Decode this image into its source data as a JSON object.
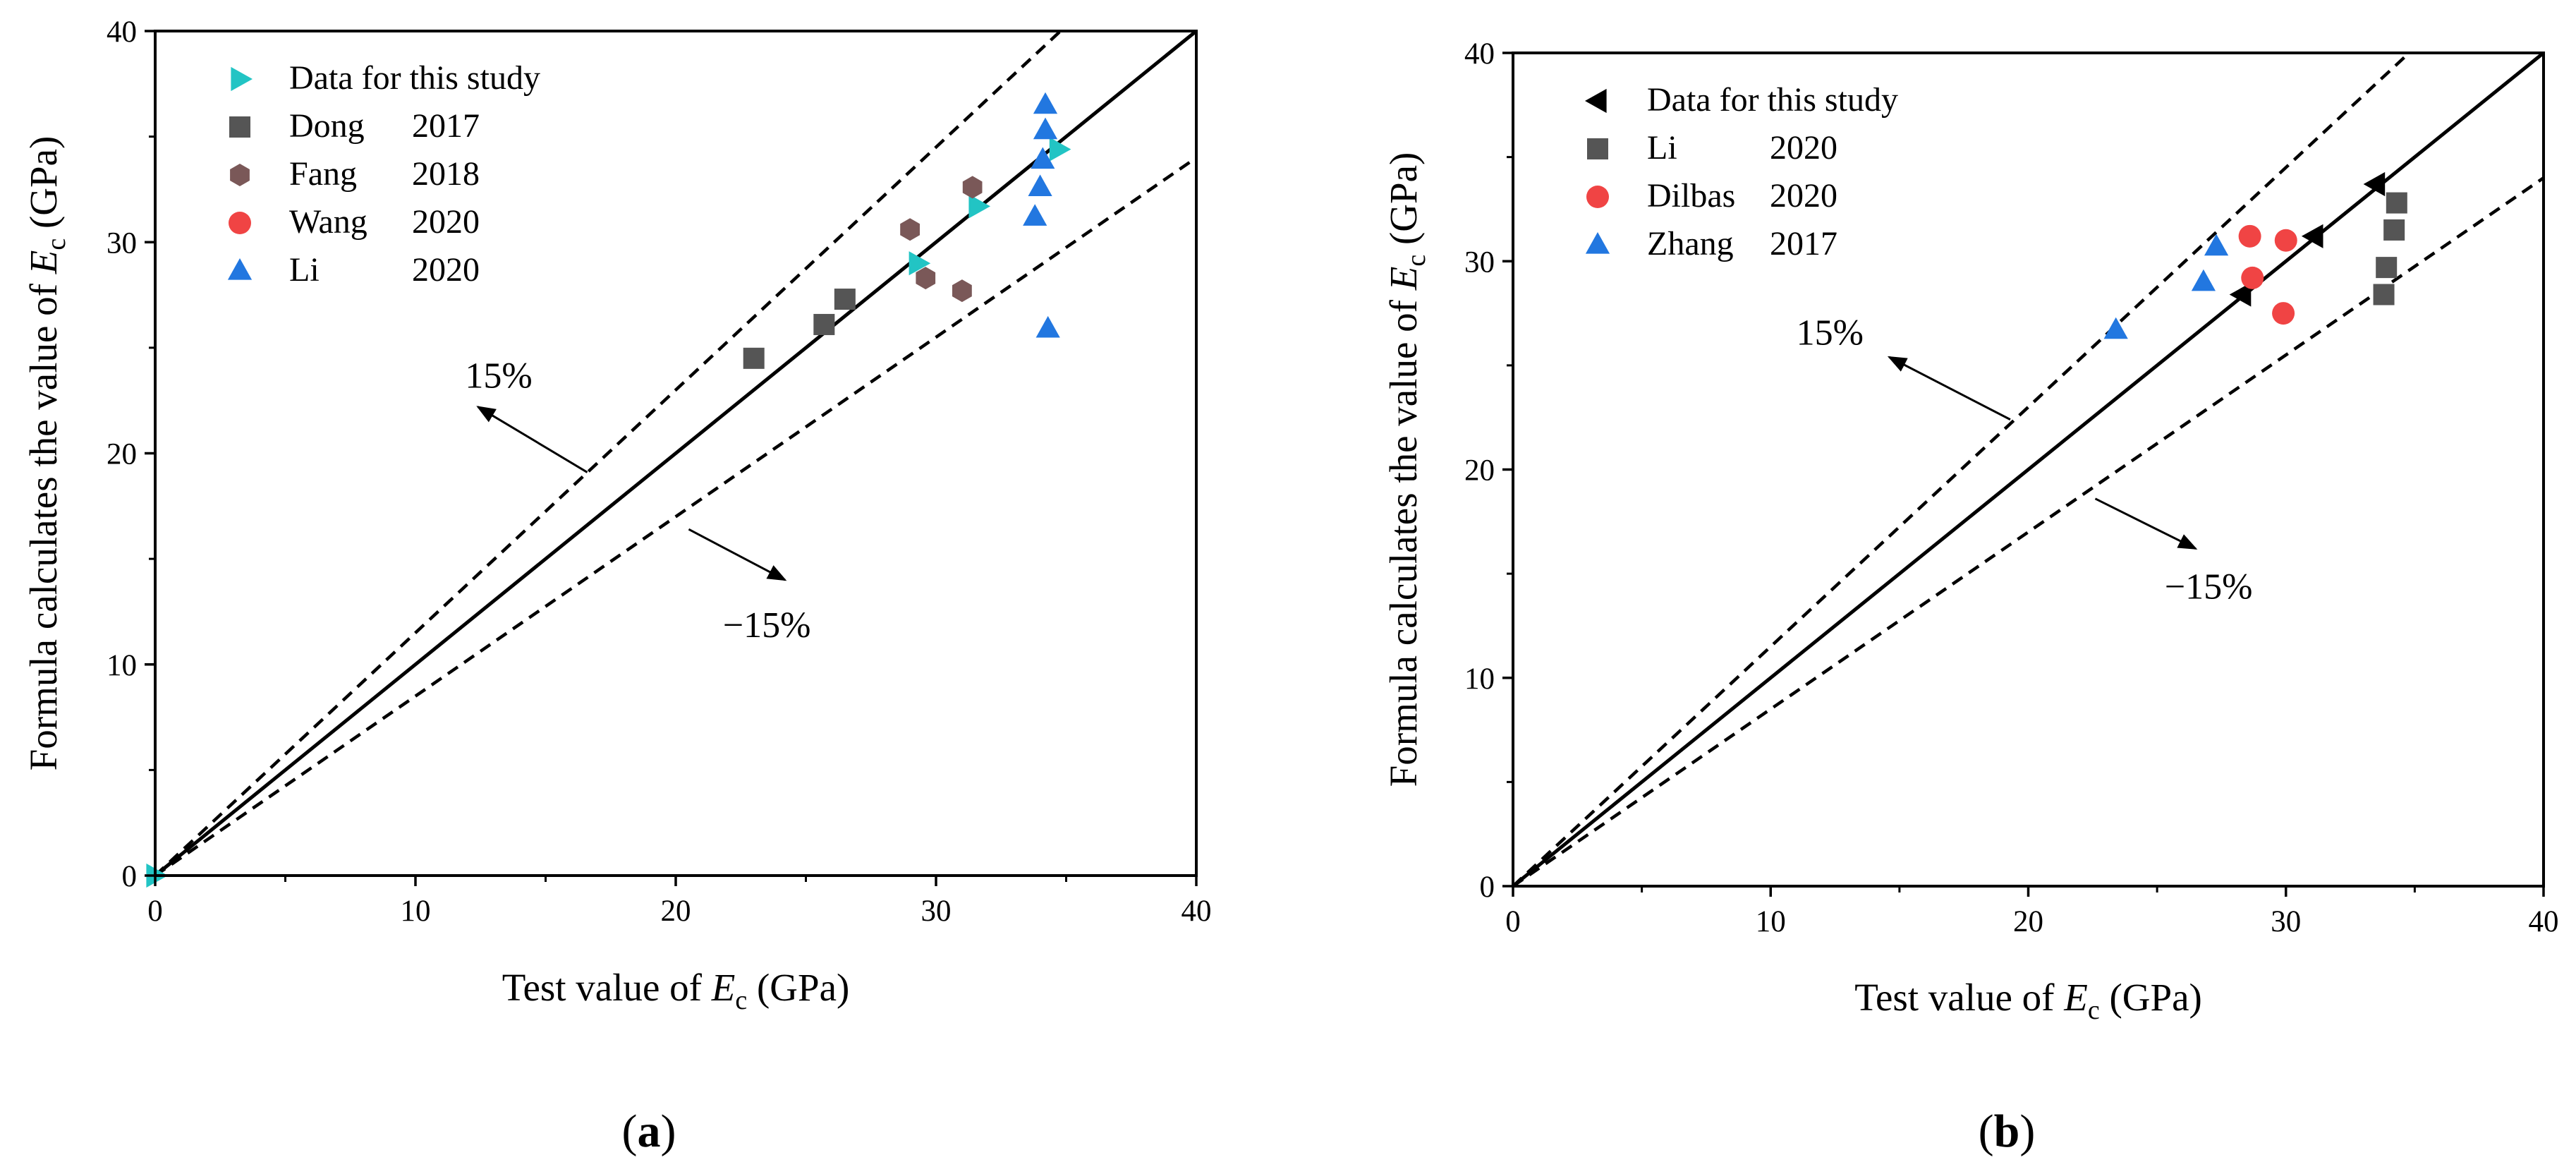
{
  "chart_data": [
    {
      "type": "scatter",
      "panel": "a",
      "caption_open": "(",
      "caption_letter": "a",
      "caption_close": ")",
      "xlabel_pre": "Test value of ",
      "xlabel_var": "E",
      "xlabel_sub": "c",
      "xlabel_post": " (GPa)",
      "ylabel_pre": "Formula calculates the value of ",
      "ylabel_var": "E",
      "ylabel_sub": "c",
      "ylabel_post": " (GPa)",
      "xlim": [
        0,
        40
      ],
      "ylim": [
        0,
        40
      ],
      "xticks": [
        0,
        10,
        20,
        30,
        40
      ],
      "yticks": [
        0,
        10,
        20,
        30,
        40
      ],
      "xtick_labels": [
        "0",
        "10",
        "20",
        "30",
        "40"
      ],
      "ytick_labels": [
        "0",
        "10",
        "20",
        "30",
        "40"
      ],
      "legend_position": "top-left",
      "reference_lines": [
        {
          "name": "y = x",
          "slope": 1.0,
          "style": "solid"
        },
        {
          "name": "+15%",
          "slope": 1.15,
          "style": "dashed"
        },
        {
          "name": "-15%",
          "slope": 0.85,
          "style": "dashed"
        }
      ],
      "annotations": [
        {
          "text": "15%",
          "at": [
            13.2,
            23.1
          ],
          "arrow_from": [
            16.6,
            19.1
          ],
          "arrow_to": [
            12.4,
            22.2
          ]
        },
        {
          "text": "−15%",
          "at": [
            23.5,
            11.3
          ],
          "arrow_from": [
            20.5,
            16.4
          ],
          "arrow_to": [
            24.2,
            14.0
          ]
        }
      ],
      "series": [
        {
          "name": "Data for this study",
          "year": "",
          "marker": "triangle-right",
          "color": "#22c4c4",
          "points": [
            [
              0,
              0
            ],
            [
              29.3,
              29.0
            ],
            [
              31.6,
              31.7
            ],
            [
              34.7,
              34.4
            ]
          ]
        },
        {
          "name": "Dong",
          "year": "2017",
          "marker": "square",
          "color": "#555555",
          "points": [
            [
              23.0,
              24.5
            ],
            [
              25.7,
              26.1
            ],
            [
              26.5,
              27.3
            ]
          ]
        },
        {
          "name": "Fang",
          "year": "2018",
          "marker": "hexagon",
          "color": "#7a5858",
          "points": [
            [
              29.0,
              30.6
            ],
            [
              31.4,
              32.6
            ],
            [
              29.6,
              28.3
            ],
            [
              31.0,
              27.7
            ]
          ]
        },
        {
          "name": "Wang",
          "year": "2020",
          "marker": "circle",
          "color": "#f04444",
          "points": []
        },
        {
          "name": "Li",
          "year": "2020",
          "marker": "triangle-up",
          "color": "#2277e0",
          "points": [
            [
              34.2,
              36.5
            ],
            [
              34.2,
              35.3
            ],
            [
              34.1,
              33.9
            ],
            [
              34.0,
              32.6
            ],
            [
              33.8,
              31.2
            ],
            [
              34.3,
              25.9
            ]
          ]
        }
      ]
    },
    {
      "type": "scatter",
      "panel": "b",
      "caption_open": "(",
      "caption_letter": "b",
      "caption_close": ")",
      "xlabel_pre": "Test value of ",
      "xlabel_var": "E",
      "xlabel_sub": "c",
      "xlabel_post": " (GPa)",
      "ylabel_pre": "Formula calculates the value of ",
      "ylabel_var": "E",
      "ylabel_sub": "c",
      "ylabel_post": " (GPa)",
      "xlim": [
        0,
        40
      ],
      "ylim": [
        0,
        40
      ],
      "xticks": [
        0,
        10,
        20,
        30,
        40
      ],
      "yticks": [
        0,
        10,
        20,
        30,
        40
      ],
      "xtick_labels": [
        "0",
        "10",
        "20",
        "30",
        "40"
      ],
      "ytick_labels": [
        "0",
        "10",
        "20",
        "30",
        "40"
      ],
      "legend_position": "top-left",
      "reference_lines": [
        {
          "name": "y = x",
          "slope": 1.0,
          "style": "solid"
        },
        {
          "name": "+15%",
          "slope": 1.15,
          "style": "dashed"
        },
        {
          "name": "-15%",
          "slope": 0.85,
          "style": "dashed"
        }
      ],
      "annotations": [
        {
          "text": "15%",
          "at": [
            12.3,
            26.0
          ],
          "arrow_from": [
            19.3,
            22.4
          ],
          "arrow_to": [
            14.6,
            25.4
          ]
        },
        {
          "text": "−15%",
          "at": [
            27.0,
            13.8
          ],
          "arrow_from": [
            22.6,
            18.6
          ],
          "arrow_to": [
            26.5,
            16.2
          ]
        }
      ],
      "series": [
        {
          "name": "Data for this study",
          "year": "",
          "marker": "triangle-left",
          "color": "#000000",
          "points": [
            [
              28.3,
              28.4
            ],
            [
              31.1,
              31.2
            ],
            [
              33.5,
              33.7
            ]
          ]
        },
        {
          "name": "Li",
          "year": "2020",
          "marker": "square",
          "color": "#555555",
          "points": [
            [
              34.3,
              32.8
            ],
            [
              34.2,
              31.5
            ],
            [
              33.9,
              29.7
            ],
            [
              33.8,
              28.4
            ]
          ]
        },
        {
          "name": "Dilbas",
          "year": "2020",
          "marker": "circle",
          "color": "#f04444",
          "points": [
            [
              28.6,
              31.2
            ],
            [
              30.0,
              31.0
            ],
            [
              28.7,
              29.2
            ],
            [
              29.9,
              27.5
            ]
          ]
        },
        {
          "name": "Zhang",
          "year": "2017",
          "marker": "triangle-up",
          "color": "#2277e0",
          "points": [
            [
              23.4,
              26.7
            ],
            [
              26.8,
              29.0
            ],
            [
              27.3,
              30.7
            ]
          ]
        }
      ]
    }
  ]
}
